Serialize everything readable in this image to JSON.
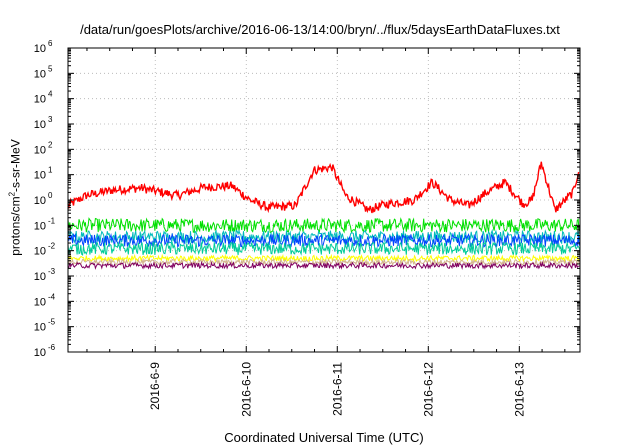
{
  "chart_data": {
    "type": "line",
    "title": "/data/run/goesPlots/archive/2016-06-13/14:00/bryn/../flux/5daysEarthDataFluxes.txt",
    "xlabel": "Coordinated Universal Time (UTC)",
    "ylabel_parts": [
      "protons/cm",
      "2",
      "-s-sr-MeV"
    ],
    "x_ticks": [
      "2016-6-9",
      "2016-6-10",
      "2016-6-11",
      "2016-6-12",
      "2016-6-13"
    ],
    "xlim": [
      "2016-06-08 01:00",
      "2016-06-13 16:00"
    ],
    "y_scale": "log",
    "y_tick_exponents": [
      -6,
      -5,
      -4,
      -3,
      -2,
      -1,
      0,
      1,
      2,
      3,
      4,
      5,
      6
    ],
    "ylim": [
      1e-06,
      1000000.0
    ],
    "grid": true,
    "legend": "none",
    "series": [
      {
        "color": "#ff0000",
        "x_days": [
          0,
          0.2,
          0.5,
          0.8,
          1.2,
          1.5,
          1.8,
          2.0,
          2.2,
          2.5,
          2.7,
          2.9,
          3.05,
          3.3,
          3.5,
          3.8,
          4.0,
          4.2,
          4.4,
          4.6,
          4.8,
          5.0,
          5.1,
          5.2,
          5.35,
          5.55,
          5.62
        ],
        "values": [
          0.6,
          1.5,
          2.5,
          3.0,
          1.5,
          3.2,
          3.6,
          1.0,
          0.5,
          0.6,
          15,
          20,
          1.5,
          0.4,
          0.7,
          1.0,
          5.0,
          1.0,
          0.6,
          2.0,
          5.0,
          0.7,
          1.0,
          30,
          0.4,
          2.0,
          20
        ]
      },
      {
        "color": "#00e000",
        "level": 0.1
      },
      {
        "color": "#00bbbb",
        "level": 0.035
      },
      {
        "color": "#0044ff",
        "level": 0.025
      },
      {
        "color": "#00cc99",
        "level": 0.012
      },
      {
        "color": "#ffff00",
        "level": 0.005
      },
      {
        "color": "#d2b48c",
        "level": 0.0035
      },
      {
        "color": "#800060",
        "level": 0.0026
      }
    ]
  }
}
